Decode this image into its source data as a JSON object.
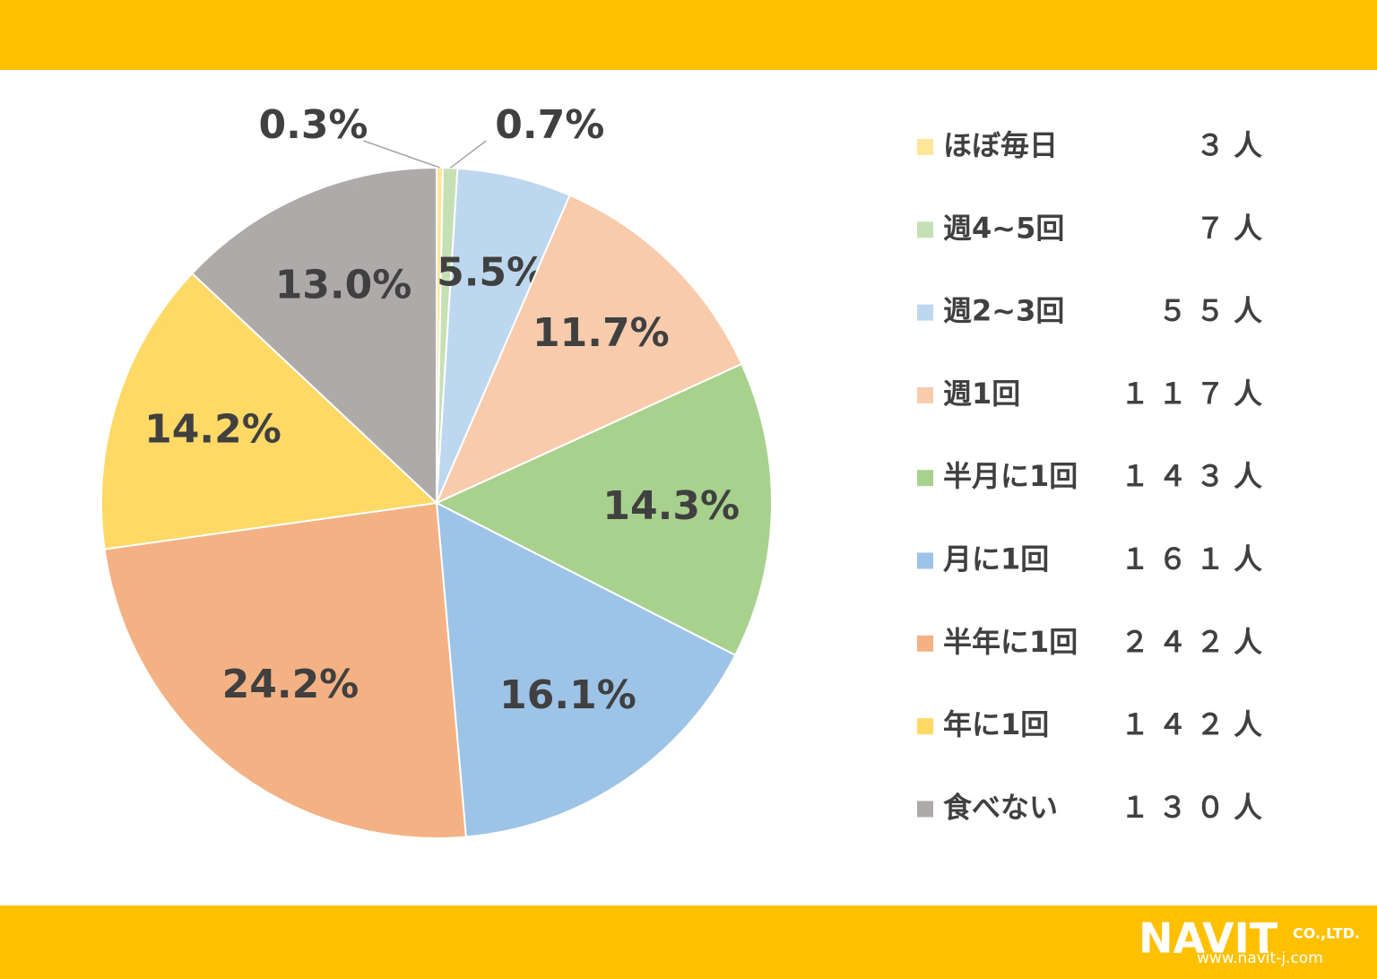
{
  "chart_data": {
    "type": "pie",
    "categories": [
      "ほぼ毎日",
      "週4~5回",
      "週2~3回",
      "週1回",
      "半月に1回",
      "月に1回",
      "半年に1回",
      "年に1回",
      "食べない"
    ],
    "values": [
      0.3,
      0.7,
      5.5,
      11.7,
      14.3,
      16.1,
      24.2,
      14.2,
      13.0
    ],
    "value_labels": [
      "0.3%",
      "0.7%",
      "5.5%",
      "11.7%",
      "14.3%",
      "16.1%",
      "24.2%",
      "14.2%",
      "13.0%"
    ],
    "count_labels": [
      "３人",
      "７人",
      "５５人",
      "１１７人",
      "１４３人",
      "１６１人",
      "２４２人",
      "１４２人",
      "１３０人"
    ],
    "colors": [
      "#FFE699",
      "#C5E0B4",
      "#BDD7EE",
      "#F8CBAD",
      "#A9D18E",
      "#9DC3E6",
      "#F4B183",
      "#FFD966",
      "#AEAAAA"
    ],
    "legend": "right"
  },
  "logo": {
    "name": "NAVIT",
    "suffix": "CO.,LTD.",
    "url": "www.navit-j.com"
  }
}
